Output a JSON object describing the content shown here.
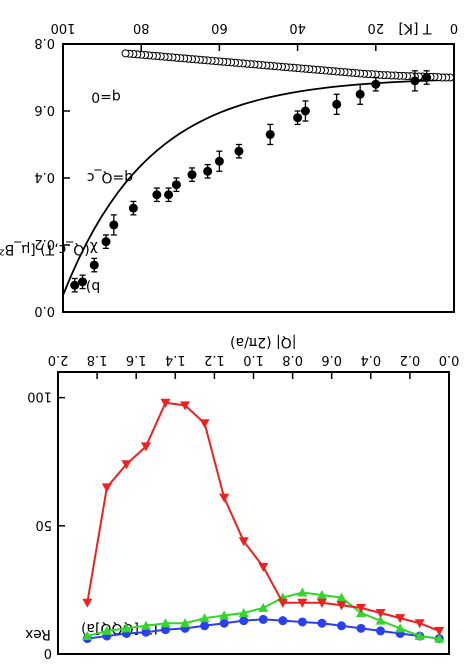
{
  "chart_data": [
    {
      "panel": "a)",
      "type": "line",
      "xlabel": "|Q| (2π/a)",
      "ylabel": "Rex",
      "annotation": "LT [QQQ]",
      "xlim": [
        0,
        2.0
      ],
      "ylim": [
        0,
        110
      ],
      "x_ticks": [
        "0.0",
        "0.2",
        "0.4",
        "0.6",
        "0.8",
        "1.0",
        "1.2",
        "1.4",
        "1.6",
        "1.8",
        "2.0"
      ],
      "y_ticks": [
        "0",
        "50",
        "100"
      ],
      "series": [
        {
          "color": "#2a3ff2",
          "marker": "circle",
          "x": [
            0.05,
            0.15,
            0.25,
            0.35,
            0.45,
            0.55,
            0.65,
            0.75,
            0.85,
            0.95,
            1.05,
            1.15,
            1.25,
            1.35,
            1.45,
            1.55,
            1.65,
            1.75,
            1.85
          ],
          "y": [
            6,
            7,
            8,
            9,
            10,
            11,
            12,
            12.5,
            13,
            13.5,
            13,
            12,
            11,
            10,
            9.5,
            8.5,
            8,
            7,
            6
          ]
        },
        {
          "color": "#33d62c",
          "marker": "triangle-down",
          "x": [
            0.05,
            0.15,
            0.25,
            0.35,
            0.45,
            0.55,
            0.65,
            0.75,
            0.85,
            0.95,
            1.05,
            1.15,
            1.25,
            1.35,
            1.45,
            1.55,
            1.65,
            1.75,
            1.85
          ],
          "y": [
            6,
            7,
            10,
            13,
            16,
            22,
            23,
            24,
            22,
            18,
            16,
            15,
            14,
            12,
            12,
            11,
            10,
            9,
            7
          ]
        },
        {
          "color": "#ee2020",
          "marker": "triangle-up",
          "x": [
            0.05,
            0.15,
            0.25,
            0.35,
            0.45,
            0.55,
            0.65,
            0.75,
            0.85,
            0.95,
            1.05,
            1.15,
            1.25,
            1.35,
            1.45,
            1.55,
            1.65,
            1.75,
            1.85
          ],
          "y": [
            9,
            12,
            14,
            16,
            18,
            19,
            20,
            20,
            20,
            34,
            44,
            61,
            90,
            97,
            98,
            81,
            74,
            65,
            20
          ]
        }
      ]
    },
    {
      "panel": "b)",
      "type": "scatter",
      "xlabel": "T [K]",
      "ylabel": "χ(Q_c,T) [μ_B² / meV]",
      "xlim": [
        0,
        100
      ],
      "ylim": [
        0,
        0.8
      ],
      "x_ticks": [
        "0",
        "20",
        "40",
        "60",
        "80",
        "100"
      ],
      "y_ticks": [
        "0.0",
        "0.2",
        "0.4",
        "0.6",
        "0.8"
      ],
      "labels": [
        "q=Q_c",
        "q=0"
      ],
      "series": [
        {
          "name": "q=0",
          "marker": "open-circle",
          "x": [
            1,
            2,
            3,
            4,
            5,
            6,
            7,
            8,
            9,
            10,
            11,
            12,
            13,
            14,
            15,
            16,
            17,
            18,
            19,
            20,
            21,
            22,
            23,
            24,
            25,
            26,
            27,
            28,
            29,
            30,
            31,
            32,
            33,
            34,
            35,
            36,
            37,
            38,
            39,
            40,
            41,
            42,
            43,
            44,
            45,
            46,
            47,
            48,
            49,
            50,
            51,
            52,
            53,
            54,
            55,
            56,
            57,
            58,
            59,
            60,
            61,
            62,
            63,
            64,
            65,
            66,
            67,
            68,
            69,
            70,
            71,
            72,
            73,
            74,
            75,
            76,
            77,
            78,
            79,
            80,
            81,
            82,
            83,
            84
          ],
          "y": [
            0.7,
            0.7,
            0.7,
            0.701,
            0.702,
            0.702,
            0.702,
            0.703,
            0.703,
            0.703,
            0.704,
            0.704,
            0.705,
            0.705,
            0.706,
            0.706,
            0.707,
            0.707,
            0.708,
            0.709,
            0.71,
            0.71,
            0.711,
            0.712,
            0.713,
            0.714,
            0.715,
            0.716,
            0.717,
            0.718,
            0.719,
            0.72,
            0.721,
            0.722,
            0.723,
            0.724,
            0.725,
            0.726,
            0.727,
            0.728,
            0.729,
            0.73,
            0.731,
            0.732,
            0.733,
            0.734,
            0.735,
            0.736,
            0.737,
            0.738,
            0.739,
            0.74,
            0.741,
            0.742,
            0.743,
            0.744,
            0.745,
            0.746,
            0.747,
            0.748,
            0.749,
            0.75,
            0.751,
            0.752,
            0.753,
            0.754,
            0.755,
            0.756,
            0.757,
            0.758,
            0.759,
            0.76,
            0.761,
            0.762,
            0.763,
            0.764,
            0.765,
            0.766,
            0.767,
            0.768,
            0.769,
            0.77,
            0.771,
            0.772
          ]
        },
        {
          "name": "q=Q_c",
          "marker": "filled-circle-errorbars",
          "x": [
            7,
            10,
            20,
            24,
            30,
            38,
            40,
            47,
            55,
            60,
            63,
            67,
            71,
            73,
            76,
            82,
            87,
            89,
            92,
            95,
            97
          ],
          "y": [
            0.7,
            0.69,
            0.68,
            0.65,
            0.62,
            0.6,
            0.58,
            0.53,
            0.48,
            0.45,
            0.42,
            0.41,
            0.38,
            0.35,
            0.35,
            0.31,
            0.26,
            0.21,
            0.14,
            0.09,
            0.08
          ],
          "err": [
            0.02,
            0.03,
            0.02,
            0.03,
            0.03,
            0.03,
            0.02,
            0.03,
            0.02,
            0.03,
            0.02,
            0.02,
            0.02,
            0.02,
            0.02,
            0.02,
            0.03,
            0.02,
            0.02,
            0.02,
            0.02
          ]
        }
      ]
    }
  ]
}
